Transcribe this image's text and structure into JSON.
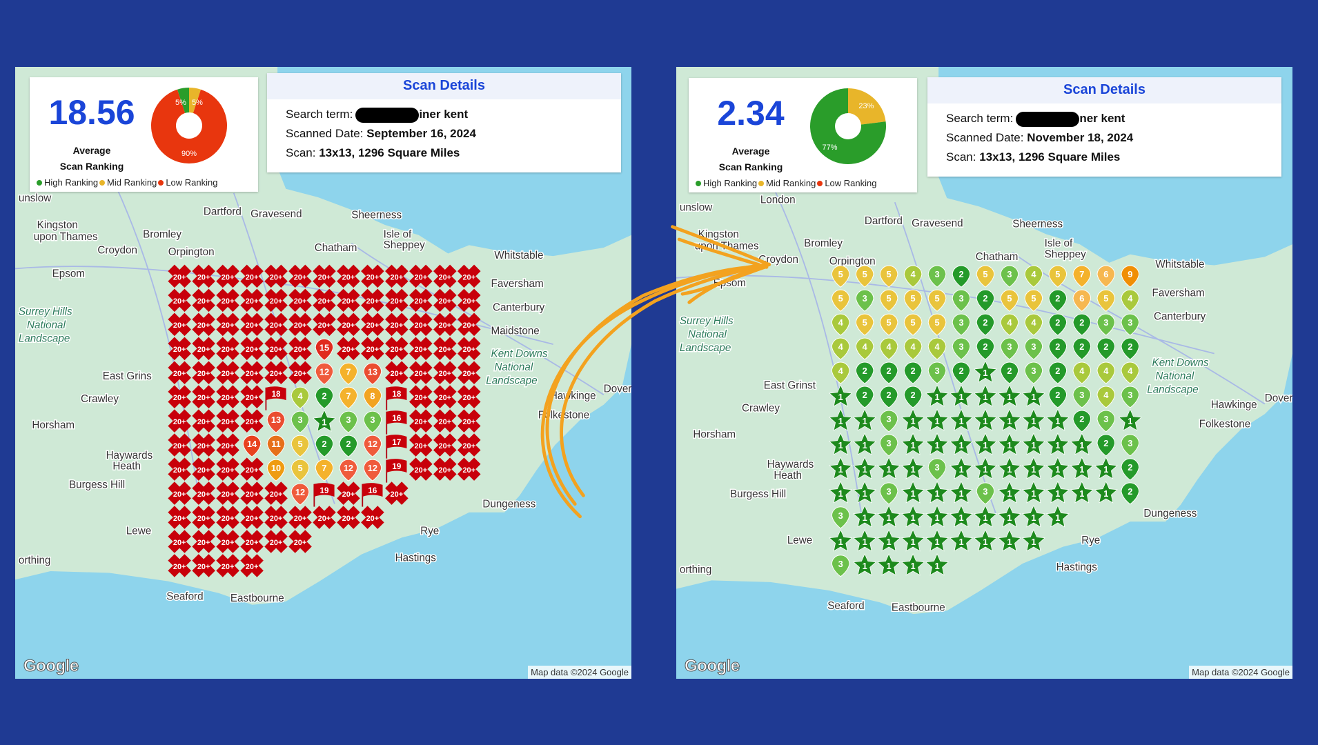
{
  "colors": {
    "background": "#1f3a93",
    "accent": "#1a45d8",
    "high": "#2a9d2a",
    "mid": "#e8b52a",
    "low": "#e8360e",
    "arrow": "#f3a21f"
  },
  "legend": {
    "high": "High Ranking",
    "mid": "Mid Ranking",
    "low": "Low Ranking"
  },
  "panels": {
    "left": {
      "average": "18.56",
      "average_label_1": "Average",
      "average_label_2": "Scan Ranking",
      "donut": [
        {
          "key": "low",
          "percent": 90,
          "label": "90%"
        },
        {
          "key": "high",
          "percent": 5,
          "label": "5%"
        },
        {
          "key": "mid",
          "percent": 5,
          "label": "5%"
        }
      ],
      "details": {
        "title": "Scan Details",
        "search_label": "Search term:",
        "search_value": "iner kent",
        "date_label": "Scanned Date:",
        "date_value": "September 16, 2024",
        "scan_label": "Scan:",
        "scan_value": "13x13, 1296 Square Miles"
      },
      "grid": [
        [
          "20+",
          "20+",
          "20+",
          "20+",
          "20+",
          "20+",
          "20+",
          "20+",
          "20+",
          "20+",
          "20+",
          "20+",
          "20+"
        ],
        [
          "20+",
          "20+",
          "20+",
          "20+",
          "20+",
          "20+",
          "20+",
          "20+",
          "20+",
          "20+",
          "20+",
          "20+",
          "20+"
        ],
        [
          "20+",
          "20+",
          "20+",
          "20+",
          "20+",
          "20+",
          "20+",
          "20+",
          "20+",
          "20+",
          "20+",
          "20+",
          "20+"
        ],
        [
          "20+",
          "20+",
          "20+",
          "20+",
          "20+",
          "20+",
          "15",
          "20+",
          "20+",
          "20+",
          "20+",
          "20+",
          "20+"
        ],
        [
          "20+",
          "20+",
          "20+",
          "20+",
          "20+",
          "20+",
          "12",
          "7",
          "13",
          "20+",
          "20+",
          "20+",
          "20+"
        ],
        [
          "20+",
          "20+",
          "20+",
          "20+",
          "18",
          "4",
          "2",
          "7",
          "8",
          "18",
          "20+",
          "20+",
          "20+"
        ],
        [
          "20+",
          "20+",
          "20+",
          "20+",
          "13",
          "3",
          "1",
          "3",
          "3",
          "16",
          "20+",
          "20+",
          "20+"
        ],
        [
          "20+",
          "20+",
          "20+",
          "14",
          "11",
          "5",
          "2",
          "2",
          "12",
          "17",
          "20+",
          "20+",
          "20+"
        ],
        [
          "20+",
          "20+",
          "20+",
          "20+",
          "10",
          "5",
          "7",
          "12",
          "12",
          "19",
          "20+",
          "20+",
          "20+"
        ],
        [
          "20+",
          "20+",
          "20+",
          "20+",
          "20+",
          "12",
          "19",
          "20+",
          "16",
          "20+"
        ],
        [
          "20+",
          "20+",
          "20+",
          "20+",
          "20+",
          "20+",
          "20+",
          "20+",
          "20+"
        ],
        [
          "20+",
          "20+",
          "20+",
          "20+",
          "20+",
          "20+"
        ],
        [
          "20+",
          "20+",
          "20+",
          "20+"
        ]
      ],
      "map_labels": [
        "Sheerness",
        "Isle of",
        "Sheppey",
        "Whitstable",
        "Faversham",
        "Canterbury",
        "Dartford",
        "Gravesend",
        "Kingston",
        "upon Thames",
        "Bromley",
        "Croydon",
        "Orpington",
        "Chatham",
        "Epsom",
        "Surrey Hills",
        "National",
        "Landscape",
        "Crawley",
        "East Grins",
        "Horsham",
        "Haywards",
        "Heath",
        "Burgess Hill",
        "Hawkinge",
        "Folkestone",
        "Dover",
        "Dungeness",
        "Hastings",
        "Eastbourne",
        "Seaford",
        "orthing",
        "Kent Downs",
        "National",
        "Landscape",
        "Rye",
        "Lewe",
        "Maidstone",
        "unslow"
      ],
      "attribution": "Map data ©2024 Google",
      "logo": "Google"
    },
    "right": {
      "average": "2.34",
      "average_label_1": "Average",
      "average_label_2": "Scan Ranking",
      "donut": [
        {
          "key": "mid",
          "percent": 23,
          "label": "23%"
        },
        {
          "key": "high",
          "percent": 77,
          "label": "77%"
        }
      ],
      "details": {
        "title": "Scan Details",
        "search_label": "Search term:",
        "search_value": "ner kent",
        "date_label": "Scanned Date:",
        "date_value": "November 18, 2024",
        "scan_label": "Scan:",
        "scan_value": "13x13, 1296 Square Miles"
      },
      "grid": [
        [
          "5",
          "5",
          "5",
          "4",
          "3",
          "2",
          "5",
          "3",
          "4",
          "5",
          "7",
          "6",
          "9"
        ],
        [
          "5",
          "3",
          "5",
          "5",
          "5",
          "3",
          "2",
          "5",
          "5",
          "2",
          "6",
          "5",
          "4"
        ],
        [
          "4",
          "5",
          "5",
          "5",
          "5",
          "3",
          "2",
          "4",
          "4",
          "2",
          "2",
          "3",
          "3"
        ],
        [
          "4",
          "4",
          "4",
          "4",
          "4",
          "3",
          "2",
          "3",
          "3",
          "2",
          "2",
          "2",
          "2"
        ],
        [
          "4",
          "2",
          "2",
          "2",
          "3",
          "2",
          "1",
          "2",
          "3",
          "2",
          "4",
          "4",
          "4"
        ],
        [
          "1",
          "2",
          "2",
          "2",
          "1",
          "1",
          "1",
          "1",
          "1",
          "2",
          "3",
          "4",
          "3"
        ],
        [
          "1",
          "1",
          "3",
          "1",
          "1",
          "1",
          "1",
          "1",
          "1",
          "1",
          "2",
          "3",
          "1"
        ],
        [
          "1",
          "1",
          "3",
          "1",
          "1",
          "1",
          "1",
          "1",
          "1",
          "1",
          "1",
          "2",
          "3"
        ],
        [
          "1",
          "1",
          "1",
          "1",
          "3",
          "1",
          "1",
          "1",
          "1",
          "1",
          "1",
          "1",
          "2"
        ],
        [
          "1",
          "1",
          "3",
          "1",
          "1",
          "1",
          "3",
          "1",
          "1",
          "1",
          "1",
          "1",
          "2"
        ],
        [
          "3",
          "1",
          "1",
          "1",
          "1",
          "1",
          "1",
          "1",
          "1",
          "1"
        ],
        [
          "1",
          "1",
          "1",
          "1",
          "1",
          "1",
          "1",
          "1",
          "1"
        ],
        [
          "3",
          "1",
          "1",
          "1",
          "1"
        ]
      ],
      "map_labels": [
        "Sheerness",
        "Isle of",
        "Sheppey",
        "Whitstable",
        "Faversham",
        "Canterbury",
        "Dartford",
        "Gravesend",
        "Kingston",
        "upon Thames",
        "Bromley",
        "Croydon",
        "Orpington",
        "Chatham",
        "Epsom",
        "Surrey Hills",
        "National",
        "Landscape",
        "Crawley",
        "East Grinst",
        "Horsham",
        "Haywards",
        "Heath",
        "Burgess Hill",
        "Hawkinge",
        "Folkestone",
        "Dover",
        "Dungeness",
        "Hastings",
        "Eastbourne",
        "Seaford",
        "orthing",
        "Kent Downs",
        "National",
        "Landscape",
        "Rye",
        "Lewe",
        "London",
        "unslow"
      ],
      "attribution": "Map data ©2024 Google",
      "logo": "Google"
    }
  }
}
